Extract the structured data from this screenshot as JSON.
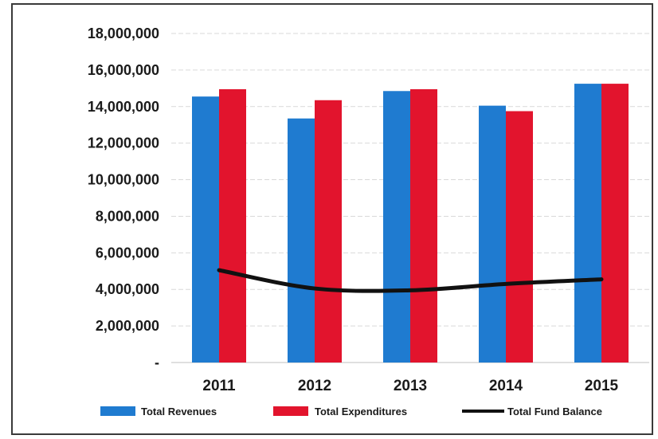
{
  "chart_data": {
    "type": "bar",
    "title": "",
    "xlabel": "",
    "ylabel": "",
    "categories": [
      "2011",
      "2012",
      "2013",
      "2014",
      "2015"
    ],
    "series": [
      {
        "name": "Total Revenues",
        "type": "bar",
        "color": "#1f7bd0",
        "values": [
          14550000,
          13350000,
          14850000,
          14050000,
          15250000
        ]
      },
      {
        "name": "Total Expenditures",
        "type": "bar",
        "color": "#e2142d",
        "values": [
          14950000,
          14350000,
          14950000,
          13750000,
          15250000
        ]
      },
      {
        "name": "Total Fund Balance",
        "type": "line",
        "color": "#111111",
        "values": [
          5050000,
          4050000,
          3950000,
          4300000,
          4550000
        ]
      }
    ],
    "ylim": [
      0,
      18000000
    ],
    "yticks": [
      0,
      2000000,
      4000000,
      6000000,
      8000000,
      10000000,
      12000000,
      14000000,
      16000000,
      18000000
    ],
    "ytick_labels": [
      "-",
      "2,000,000",
      "4,000,000",
      "6,000,000",
      "8,000,000",
      "10,000,000",
      "12,000,000",
      "14,000,000",
      "16,000,000",
      "18,000,000"
    ],
    "grid": true,
    "legend": "bottom"
  }
}
